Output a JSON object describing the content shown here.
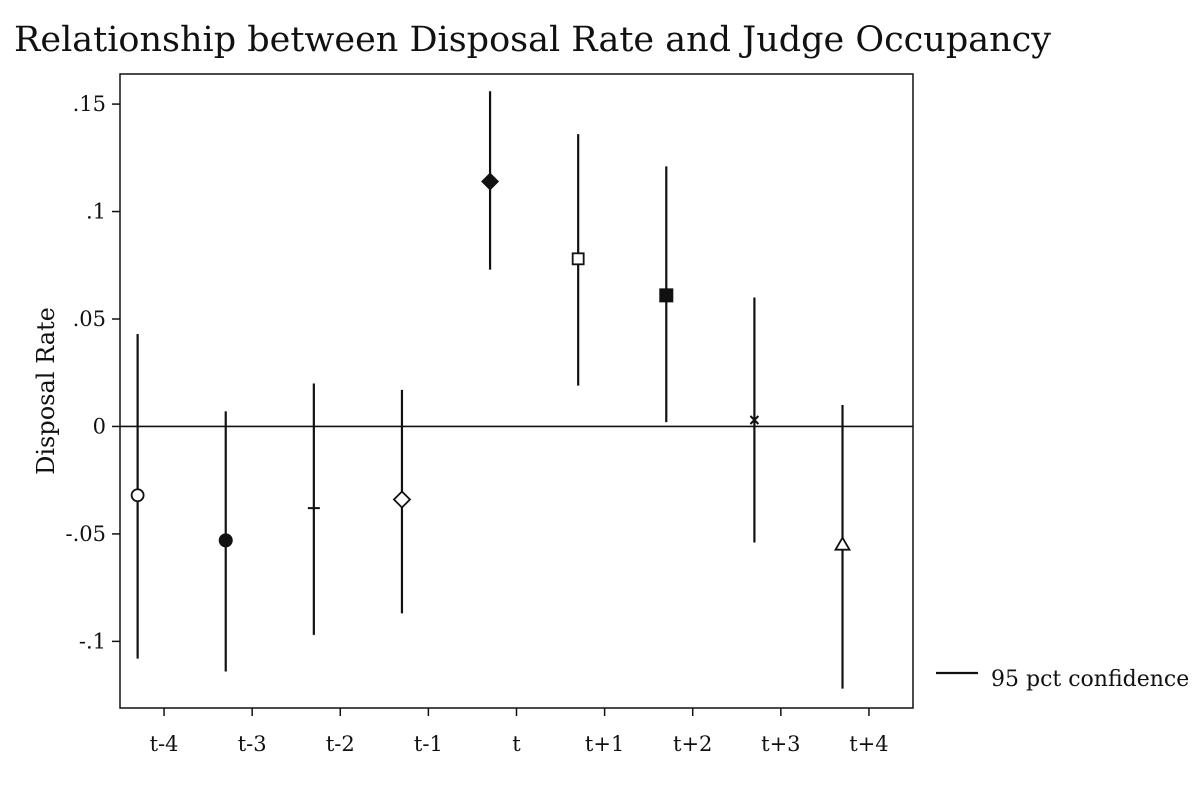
{
  "chart_data": {
    "type": "scatter",
    "title": "Relationship between Disposal Rate and Judge Occupancy",
    "xlabel": "",
    "ylabel": "Disposal Rate",
    "x_tick_labels": [
      "t-4",
      "t-3",
      "t-2",
      "t-1",
      "t",
      "t+1",
      "t+2",
      "t+3",
      "t+4"
    ],
    "y_tick_labels": [
      ".15",
      ".1",
      ".05",
      "0",
      "-.05",
      "-.1"
    ],
    "y_ticks": [
      0.15,
      0.1,
      0.05,
      0,
      -0.05,
      -0.1
    ],
    "ylim": [
      -0.131,
      0.164
    ],
    "x_range": [
      0,
      9
    ],
    "reference_line_y": 0,
    "grid": false,
    "legend_position": "right",
    "legend": [
      {
        "label": "95 pct confidence",
        "marker": "line"
      }
    ],
    "points": [
      {
        "x": 0.2,
        "y": -0.032,
        "ci_low": -0.108,
        "ci_high": 0.043,
        "marker": "circle-open"
      },
      {
        "x": 1.2,
        "y": -0.053,
        "ci_low": -0.114,
        "ci_high": 0.007,
        "marker": "circle-filled"
      },
      {
        "x": 2.2,
        "y": -0.038,
        "ci_low": -0.097,
        "ci_high": 0.02,
        "marker": "dash"
      },
      {
        "x": 3.2,
        "y": -0.034,
        "ci_low": -0.087,
        "ci_high": 0.017,
        "marker": "diamond-open"
      },
      {
        "x": 4.2,
        "y": 0.114,
        "ci_low": 0.073,
        "ci_high": 0.156,
        "marker": "diamond-filled"
      },
      {
        "x": 5.2,
        "y": 0.078,
        "ci_low": 0.019,
        "ci_high": 0.136,
        "marker": "square-open"
      },
      {
        "x": 6.2,
        "y": 0.061,
        "ci_low": 0.002,
        "ci_high": 0.121,
        "marker": "square-filled"
      },
      {
        "x": 7.2,
        "y": 0.003,
        "ci_low": -0.054,
        "ci_high": 0.06,
        "marker": "x"
      },
      {
        "x": 8.2,
        "y": -0.055,
        "ci_low": -0.122,
        "ci_high": 0.01,
        "marker": "triangle-open"
      }
    ]
  }
}
